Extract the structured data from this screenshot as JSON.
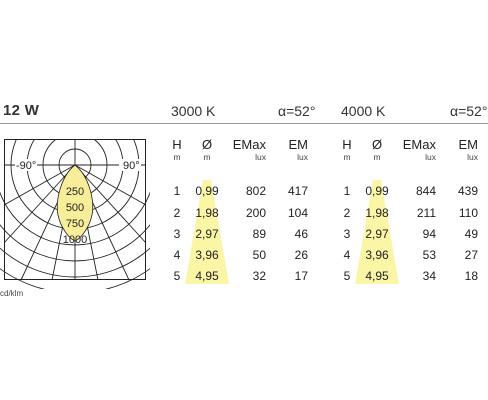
{
  "header": {
    "power": "12 W",
    "groups": [
      {
        "cct": "3000 K",
        "alpha": "α=52°"
      },
      {
        "cct": "4000 K",
        "alpha": "α=52°"
      }
    ]
  },
  "polar": {
    "angle_left": "-90°",
    "angle_right": "90°",
    "rings": [
      "250",
      "500",
      "750",
      "1000"
    ],
    "unit": "cd/klm"
  },
  "columns": {
    "h": {
      "label": "H",
      "unit": "m"
    },
    "d": {
      "label": "Ø",
      "unit": "m"
    },
    "emax": {
      "label": "EMax",
      "unit": "lux"
    },
    "em": {
      "label": "EM",
      "unit": "lux"
    }
  },
  "tables": [
    {
      "rows": [
        {
          "h": "1",
          "d": "0,99",
          "emax": "802",
          "em": "417"
        },
        {
          "h": "2",
          "d": "1,98",
          "emax": "200",
          "em": "104"
        },
        {
          "h": "3",
          "d": "2,97",
          "emax": "89",
          "em": "46"
        },
        {
          "h": "4",
          "d": "3,96",
          "emax": "50",
          "em": "26"
        },
        {
          "h": "5",
          "d": "4,95",
          "emax": "32",
          "em": "17"
        }
      ]
    },
    {
      "rows": [
        {
          "h": "1",
          "d": "0,99",
          "emax": "844",
          "em": "439"
        },
        {
          "h": "2",
          "d": "1,98",
          "emax": "211",
          "em": "110"
        },
        {
          "h": "3",
          "d": "2,97",
          "emax": "94",
          "em": "49"
        },
        {
          "h": "4",
          "d": "3,96",
          "emax": "53",
          "em": "27"
        },
        {
          "h": "5",
          "d": "4,95",
          "emax": "34",
          "em": "18"
        }
      ]
    }
  ],
  "colors": {
    "cone": "#fbf5a6",
    "curve": "#f8ee9a",
    "rule": "#9a9a9a",
    "grid": "#222222"
  }
}
